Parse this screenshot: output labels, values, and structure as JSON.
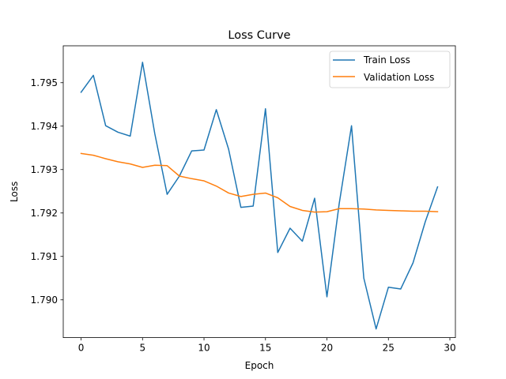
{
  "chart_data": {
    "type": "line",
    "title": "Loss Curve",
    "xlabel": "Epoch",
    "ylabel": "Loss",
    "xlim": [
      -1.45,
      30.45
    ],
    "ylim": [
      1.78913,
      1.79585
    ],
    "xticks": [
      0,
      5,
      10,
      15,
      20,
      25,
      30
    ],
    "yticks": [
      1.79,
      1.791,
      1.792,
      1.793,
      1.794,
      1.795
    ],
    "ytick_labels": [
      "1.790",
      "1.791",
      "1.792",
      "1.793",
      "1.794",
      "1.795"
    ],
    "grid": false,
    "legend_position": "top-right",
    "x": [
      0,
      1,
      2,
      3,
      4,
      5,
      6,
      7,
      8,
      9,
      10,
      11,
      12,
      13,
      14,
      15,
      16,
      17,
      18,
      19,
      20,
      21,
      22,
      23,
      24,
      25,
      26,
      27,
      28,
      29
    ],
    "series": [
      {
        "name": "Train Loss",
        "color": "#1f77b4",
        "values": [
          1.79478,
          1.79517,
          1.79401,
          1.79386,
          1.79377,
          1.79547,
          1.79382,
          1.79243,
          1.79285,
          1.79343,
          1.79345,
          1.79438,
          1.79347,
          1.79213,
          1.79216,
          1.7944,
          1.79109,
          1.79165,
          1.79135,
          1.79234,
          1.79007,
          1.79222,
          1.79401,
          1.7905,
          1.78933,
          1.79029,
          1.79025,
          1.79085,
          1.7918,
          1.7926
        ]
      },
      {
        "name": "Validation Loss",
        "color": "#ff7f0e",
        "values": [
          1.79337,
          1.79333,
          1.79325,
          1.79318,
          1.79313,
          1.79305,
          1.7931,
          1.79309,
          1.79285,
          1.79279,
          1.79274,
          1.79262,
          1.79246,
          1.79238,
          1.79243,
          1.79246,
          1.79235,
          1.79215,
          1.79206,
          1.79202,
          1.79203,
          1.7921,
          1.7921,
          1.79209,
          1.79207,
          1.79206,
          1.79205,
          1.79204,
          1.79204,
          1.79203
        ]
      }
    ]
  }
}
